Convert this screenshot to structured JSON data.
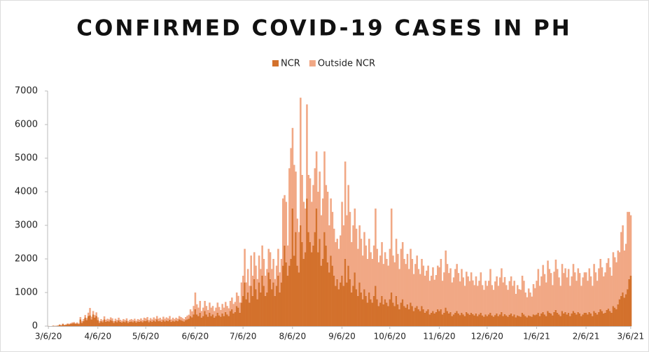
{
  "chart_data": {
    "type": "stacked_bar",
    "title": "CONFIRMED COVID-19 CASES IN PH",
    "categories": [
      "3/6/20",
      null,
      null,
      null,
      null,
      null,
      null,
      null,
      null,
      null,
      null,
      null,
      null,
      null,
      null,
      null,
      null,
      null,
      null,
      null,
      null,
      null,
      null,
      null,
      null,
      null,
      null,
      null,
      null,
      null,
      null,
      "4/6/20",
      null,
      null,
      null,
      null,
      null,
      null,
      null,
      null,
      null,
      null,
      null,
      null,
      null,
      null,
      null,
      null,
      null,
      null,
      null,
      null,
      null,
      null,
      null,
      null,
      null,
      null,
      null,
      null,
      null,
      "5/6/20",
      null,
      null,
      null,
      null,
      null,
      null,
      null,
      null,
      null,
      null,
      null,
      null,
      null,
      null,
      null,
      null,
      null,
      null,
      null,
      null,
      null,
      null,
      null,
      null,
      null,
      null,
      null,
      null,
      null,
      null,
      "6/6/20",
      null,
      null,
      null,
      null,
      null,
      null,
      null,
      null,
      null,
      null,
      null,
      null,
      null,
      null,
      null,
      null,
      null,
      null,
      null,
      null,
      null,
      null,
      null,
      null,
      null,
      null,
      null,
      null,
      null,
      "7/6/20",
      null,
      null,
      null,
      null,
      null,
      null,
      null,
      null,
      null,
      null,
      null,
      null,
      null,
      null,
      null,
      null,
      null,
      null,
      null,
      null,
      null,
      null,
      null,
      null,
      null,
      null,
      null,
      null,
      null,
      null,
      "8/6/20",
      null,
      null,
      null,
      null,
      null,
      null,
      null,
      null,
      null,
      null,
      null,
      null,
      null,
      null,
      null,
      null,
      null,
      null,
      null,
      null,
      null,
      null,
      null,
      null,
      null,
      null,
      null,
      null,
      null,
      null,
      "9/6/20",
      null,
      null,
      null,
      null,
      null,
      null,
      null,
      null,
      null,
      null,
      null,
      null,
      null,
      null,
      null,
      null,
      null,
      null,
      null,
      null,
      null,
      null,
      null,
      null,
      null,
      null,
      null,
      null,
      null,
      "10/6/20",
      null,
      null,
      null,
      null,
      null,
      null,
      null,
      null,
      null,
      null,
      null,
      null,
      null,
      null,
      null,
      null,
      null,
      null,
      null,
      null,
      null,
      null,
      null,
      null,
      null,
      null,
      null,
      null,
      null,
      null,
      "11/6/20",
      null,
      null,
      null,
      null,
      null,
      null,
      null,
      null,
      null,
      null,
      null,
      null,
      null,
      null,
      null,
      null,
      null,
      null,
      null,
      null,
      null,
      null,
      null,
      null,
      null,
      null,
      null,
      null,
      null,
      "12/6/20",
      null,
      null,
      null,
      null,
      null,
      null,
      null,
      null,
      null,
      null,
      null,
      null,
      null,
      null,
      null,
      null,
      null,
      null,
      null,
      null,
      null,
      null,
      null,
      null,
      null,
      null,
      null,
      null,
      null,
      null,
      "1/6/21",
      null,
      null,
      null,
      null,
      null,
      null,
      null,
      null,
      null,
      null,
      null,
      null,
      null,
      null,
      null,
      null,
      null,
      null,
      null,
      null,
      null,
      null,
      null,
      null,
      null,
      null,
      null,
      null,
      null,
      null,
      "2/6/21",
      null,
      null,
      null,
      null,
      null,
      null,
      null,
      null,
      null,
      null,
      null,
      null,
      null,
      null,
      null,
      null,
      null,
      null,
      null,
      null,
      null,
      null,
      null,
      null,
      null,
      null,
      null,
      "3/6/21"
    ],
    "series": [
      {
        "name": "NCR",
        "color": "#d3712c",
        "values": [
          3,
          0,
          1,
          10,
          5,
          8,
          15,
          40,
          20,
          60,
          30,
          40,
          60,
          50,
          70,
          80,
          90,
          70,
          80,
          60,
          200,
          100,
          150,
          250,
          180,
          300,
          320,
          200,
          350,
          250,
          300,
          180,
          100,
          150,
          120,
          200,
          130,
          150,
          140,
          180,
          160,
          100,
          150,
          120,
          170,
          130,
          110,
          140,
          120,
          160,
          100,
          130,
          140,
          120,
          150,
          110,
          140,
          130,
          150,
          120,
          160,
          150,
          180,
          120,
          160,
          130,
          170,
          140,
          200,
          150,
          160,
          130,
          180,
          140,
          170,
          150,
          190,
          130,
          160,
          140,
          170,
          150,
          200,
          180,
          160,
          140,
          180,
          200,
          220,
          300,
          260,
          350,
          500,
          350,
          300,
          400,
          250,
          300,
          450,
          350,
          280,
          400,
          300,
          350,
          250,
          300,
          400,
          320,
          280,
          380,
          300,
          420,
          350,
          300,
          450,
          500,
          380,
          420,
          600,
          550,
          400,
          700,
          900,
          1300,
          800,
          1000,
          700,
          1200,
          900,
          1400,
          1100,
          800,
          1300,
          1000,
          1500,
          1200,
          900,
          1000,
          1600,
          1400,
          1100,
          1300,
          900,
          1200,
          1500,
          1000,
          1300,
          1800,
          2400,
          1900,
          1500,
          1800,
          2000,
          3500,
          2100,
          2800,
          1800,
          1600,
          3000,
          2500,
          2000,
          2200,
          3800,
          2800,
          2500,
          2200,
          2400,
          2800,
          3500,
          2200,
          2600,
          1800,
          2000,
          2800,
          2400,
          1900,
          1600,
          2100,
          1800,
          1500,
          1200,
          1400,
          1100,
          1300,
          1500,
          1200,
          2000,
          1300,
          1800,
          1400,
          1000,
          1200,
          1600,
          1100,
          900,
          1300,
          1000,
          800,
          1100,
          900,
          700,
          1000,
          800,
          700,
          900,
          1200,
          800,
          600,
          700,
          900,
          650,
          800,
          700,
          600,
          800,
          1000,
          700,
          600,
          900,
          650,
          500,
          700,
          800,
          600,
          550,
          650,
          500,
          700,
          600,
          450,
          550,
          600,
          500,
          450,
          600,
          500,
          400,
          450,
          500,
          350,
          400,
          450,
          380,
          420,
          500,
          450,
          500,
          350,
          400,
          550,
          450,
          380,
          420,
          300,
          350,
          400,
          450,
          380,
          330,
          400,
          350,
          300,
          420,
          380,
          340,
          400,
          360,
          320,
          380,
          300,
          350,
          400,
          320,
          280,
          350,
          300,
          350,
          400,
          320,
          280,
          330,
          380,
          300,
          350,
          420,
          300,
          360,
          320,
          280,
          340,
          380,
          300,
          350,
          260,
          320,
          300,
          280,
          400,
          350,
          300,
          260,
          320,
          300,
          280,
          350,
          330,
          350,
          400,
          300,
          380,
          420,
          350,
          300,
          450,
          400,
          380,
          320,
          420,
          480,
          400,
          350,
          300,
          450,
          380,
          420,
          350,
          400,
          300,
          380,
          450,
          400,
          350,
          420,
          380,
          300,
          350,
          400,
          400,
          350,
          420,
          380,
          300,
          450,
          400,
          350,
          420,
          500,
          450,
          380,
          400,
          480,
          520,
          450,
          400,
          600,
          550,
          500,
          650,
          800,
          900,
          1000,
          850,
          950,
          1100,
          1400,
          1500
        ]
      },
      {
        "name": "Outside NCR",
        "color": "#f1a885",
        "values": [
          0,
          0,
          1,
          5,
          5,
          4,
          5,
          10,
          10,
          15,
          10,
          10,
          20,
          20,
          20,
          30,
          30,
          20,
          30,
          20,
          70,
          50,
          60,
          80,
          60,
          100,
          220,
          80,
          100,
          80,
          110,
          80,
          50,
          60,
          50,
          90,
          60,
          70,
          60,
          80,
          70,
          50,
          70,
          60,
          80,
          60,
          50,
          70,
          60,
          70,
          50,
          60,
          70,
          60,
          70,
          50,
          70,
          60,
          80,
          60,
          90,
          80,
          90,
          60,
          80,
          70,
          90,
          80,
          100,
          70,
          90,
          70,
          100,
          80,
          90,
          80,
          110,
          70,
          90,
          70,
          80,
          70,
          100,
          90,
          80,
          70,
          90,
          110,
          120,
          200,
          180,
          250,
          500,
          300,
          250,
          350,
          200,
          250,
          300,
          250,
          200,
          300,
          250,
          250,
          200,
          250,
          300,
          250,
          200,
          280,
          250,
          300,
          250,
          230,
          300,
          350,
          280,
          300,
          400,
          350,
          300,
          600,
          600,
          1000,
          500,
          700,
          500,
          900,
          600,
          800,
          700,
          600,
          800,
          700,
          900,
          800,
          600,
          700,
          700,
          800,
          600,
          700,
          500,
          600,
          800,
          600,
          700,
          2000,
          1500,
          1800,
          900,
          2900,
          3300,
          2400,
          2700,
          1800,
          1400,
          1200,
          3800,
          2000,
          1700,
          1300,
          2800,
          1700,
          1900,
          1500,
          1800,
          1900,
          1700,
          1800,
          2000,
          1500,
          1800,
          2400,
          1800,
          2100,
          1400,
          1700,
          1600,
          1400,
          1300,
          1200,
          1200,
          1400,
          2200,
          1800,
          2900,
          2000,
          2400,
          2000,
          1500,
          1800,
          1900,
          1800,
          1400,
          1700,
          1600,
          1300,
          1700,
          1500,
          1300,
          1600,
          1400,
          1300,
          1500,
          2300,
          1500,
          1300,
          1400,
          1600,
          1200,
          1400,
          1300,
          1200,
          1500,
          2500,
          1400,
          1300,
          1700,
          1500,
          1200,
          1600,
          1700,
          1400,
          1300,
          1500,
          1200,
          1600,
          1400,
          1100,
          1300,
          1500,
          1200,
          1100,
          1400,
          1300,
          1100,
          1200,
          1300,
          1000,
          1100,
          1300,
          1000,
          1100,
          1300,
          1300,
          1500,
          1000,
          1200,
          1700,
          1400,
          1200,
          1300,
          1000,
          1100,
          1300,
          1400,
          1200,
          1000,
          1300,
          1100,
          900,
          1200,
          1100,
          1000,
          1200,
          1000,
          900,
          1100,
          900,
          1000,
          1200,
          900,
          800,
          1000,
          900,
          1000,
          1300,
          900,
          800,
          1000,
          1100,
          900,
          1100,
          1300,
          1000,
          1100,
          900,
          800,
          1000,
          1100,
          900,
          1000,
          700,
          900,
          800,
          800,
          1100,
          1000,
          700,
          600,
          800,
          700,
          600,
          900,
          800,
          1000,
          1300,
          900,
          1100,
          1400,
          1200,
          1000,
          1500,
          1300,
          1200,
          900,
          1200,
          1500,
          1300,
          1100,
          900,
          1400,
          1200,
          1300,
          1100,
          1300,
          900,
          1100,
          1400,
          1200,
          1000,
          1300,
          1200,
          900,
          1100,
          1200,
          1200,
          1000,
          1300,
          1100,
          900,
          1400,
          1200,
          1000,
          1300,
          1500,
          1300,
          1100,
          1200,
          1400,
          1500,
          1300,
          1100,
          1600,
          1500,
          1400,
          1600,
          1400,
          1900,
          2000,
          1400,
          1500,
          2300,
          2000,
          1800
        ]
      }
    ],
    "ylim": [
      0,
      7000
    ],
    "yticks": [
      0,
      1000,
      2000,
      3000,
      4000,
      5000,
      6000,
      7000
    ],
    "grid": false,
    "legend": "top"
  }
}
